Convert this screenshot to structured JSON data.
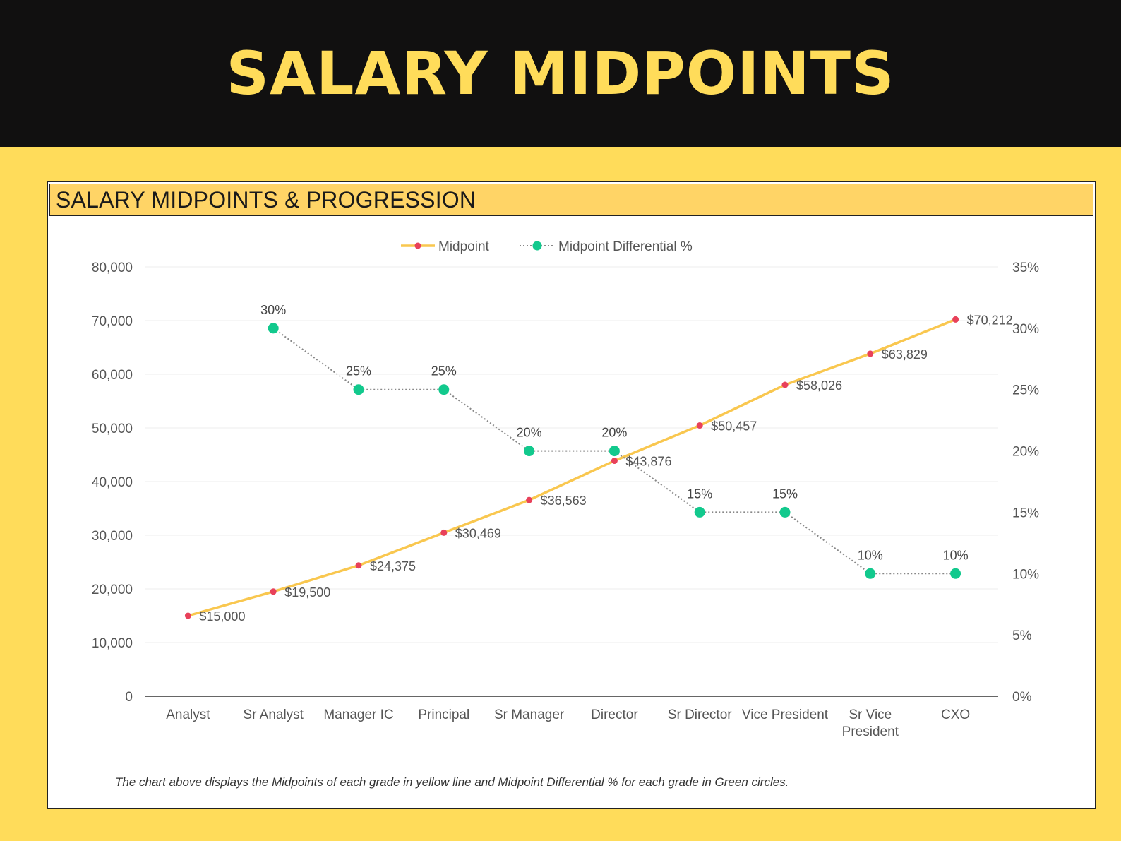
{
  "header": {
    "title": "SALARY MIDPOINTS"
  },
  "card": {
    "title": "SALARY MIDPOINTS & PROGRESSION",
    "note": "The chart above displays the Midpoints of each grade in yellow line and Midpoint Differential % for each grade in Green circles."
  },
  "colors": {
    "background": "#FFDC5A",
    "banner": "#111010",
    "banner_text": "#FFDC5A",
    "card_header": "#FFD466",
    "midpoint_line": "#F9C74F",
    "midpoint_marker": "#E8415A",
    "differential_marker": "#12C98D",
    "differential_line": "#888888"
  },
  "chart_data": {
    "type": "line",
    "categories": [
      [
        "Analyst"
      ],
      [
        "Sr Analyst"
      ],
      [
        "Manager IC"
      ],
      [
        "Principal"
      ],
      [
        "Sr Manager"
      ],
      [
        "Director"
      ],
      [
        "Sr Director"
      ],
      [
        "Vice President"
      ],
      [
        "Sr Vice",
        "President"
      ],
      [
        "CXO"
      ]
    ],
    "series": [
      {
        "name": "Midpoint",
        "axis": "left",
        "values": [
          15000,
          19500,
          24375,
          30469,
          36563,
          43876,
          50457,
          58026,
          63829,
          70212
        ],
        "labels": [
          "$15,000",
          "$19,500",
          "$24,375",
          "$30,469",
          "$36,563",
          "$43,876",
          "$50,457",
          "$58,026",
          "$63,829",
          "$70,212"
        ]
      },
      {
        "name": "Midpoint Differential %",
        "axis": "right",
        "values": [
          null,
          30,
          25,
          25,
          20,
          20,
          15,
          15,
          10,
          10
        ],
        "labels": [
          "",
          "30%",
          "25%",
          "25%",
          "20%",
          "20%",
          "15%",
          "15%",
          "10%",
          "10%"
        ]
      }
    ],
    "y_left": {
      "ylim": [
        0,
        80000
      ],
      "ticks": [
        0,
        10000,
        20000,
        30000,
        40000,
        50000,
        60000,
        70000,
        80000
      ],
      "tick_labels": [
        "0",
        "10,000",
        "20,000",
        "30,000",
        "40,000",
        "50,000",
        "60,000",
        "70,000",
        "80,000"
      ]
    },
    "y_right": {
      "ylim": [
        0,
        35
      ],
      "ticks": [
        0,
        5,
        10,
        15,
        20,
        25,
        30,
        35
      ],
      "tick_labels": [
        "0%",
        "5%",
        "10%",
        "15%",
        "20%",
        "25%",
        "30%",
        "35%"
      ]
    },
    "grid": true,
    "legend": "top-center"
  }
}
